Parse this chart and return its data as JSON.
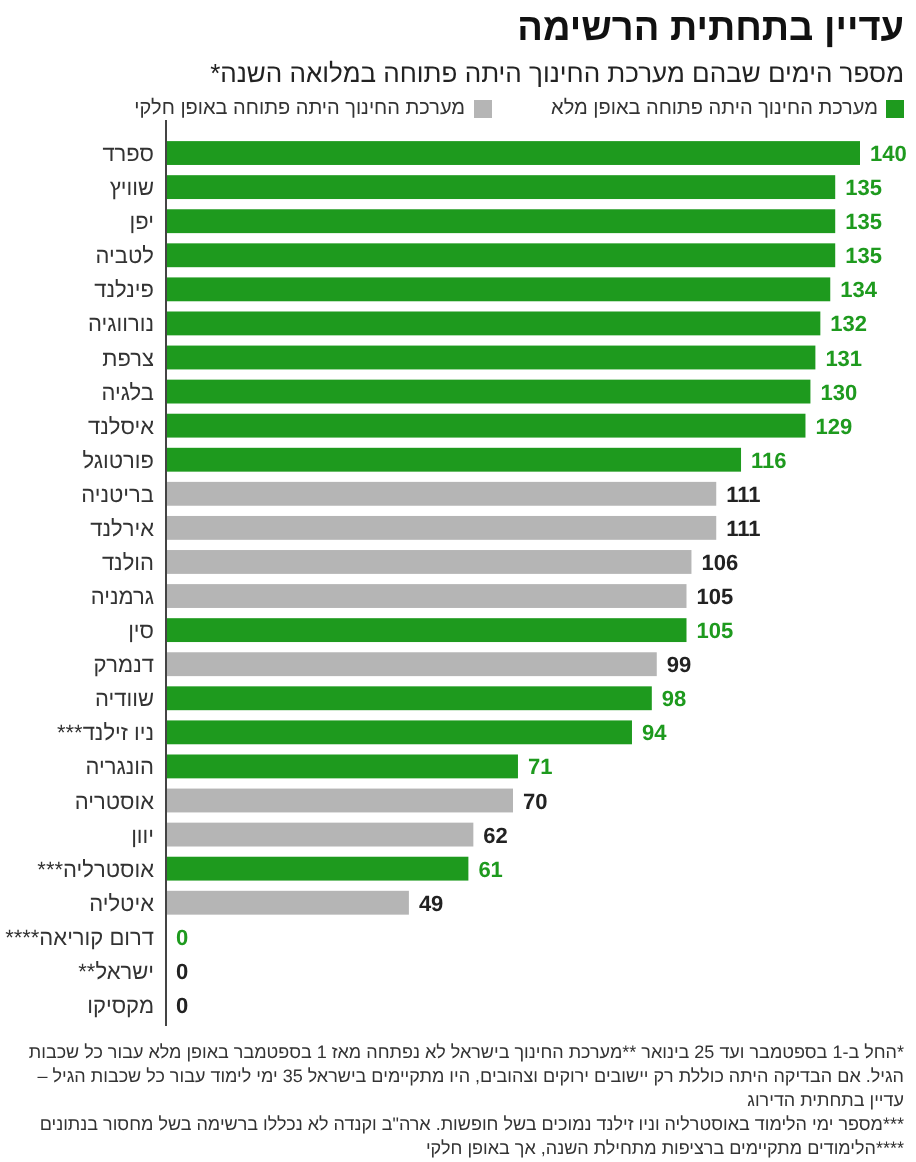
{
  "chart_data": {
    "type": "bar",
    "orientation": "horizontal",
    "data_labels": true,
    "legend": "top",
    "title": "עדיין בתחתית הרשימה",
    "subtitle": "מספר הימים שבהם מערכת החינוך היתה פתוחה במלואה השנה*",
    "categories": [
      "ספרד",
      "שוויץ",
      "יפן",
      "לטביה",
      "פינלנד",
      "נורווגיה",
      "צרפת",
      "בלגיה",
      "איסלנד",
      "פורטוגל",
      "בריטניה",
      "אירלנד",
      "הולנד",
      "גרמניה",
      "סין",
      "דנמרק",
      "שוודיה",
      "ניו זילנד***",
      "הונגריה",
      "אוסטריה",
      "יוון",
      "אוסטרליה***",
      "איטליה",
      "דרום קוריאה****",
      "ישראל**",
      "מקסיקו"
    ],
    "series": [
      {
        "name": "מערכת החינוך היתה פתוחה באופן מלא",
        "color": "#1e9a1e",
        "values": [
          140,
          135,
          135,
          135,
          134,
          132,
          131,
          130,
          129,
          116,
          null,
          null,
          null,
          null,
          105,
          null,
          98,
          94,
          71,
          null,
          null,
          61,
          null,
          0,
          null,
          null
        ]
      },
      {
        "name": "מערכת החינוך היתה פתוחה באופן חלקי",
        "color": "#b5b5b5",
        "values": [
          null,
          null,
          null,
          null,
          null,
          null,
          null,
          null,
          null,
          null,
          111,
          111,
          106,
          105,
          null,
          99,
          null,
          null,
          null,
          70,
          62,
          null,
          49,
          null,
          0,
          0
        ]
      }
    ],
    "annotations": [
      "*החל ב-1 בספטמבר ועד 25 בינואר **מערכת החינוך בישראל לא נפתחה מאז 1 בספטמבר באופן מלא עבור כל שכבות הגיל. אם הבדיקה היתה כוללת רק יישובים ירוקים וצהובים, היו מתקיימים בישראל 35 ימי לימוד עבור כל שכבות הגיל – עדיין בתחתית הדירוג",
      "***מספר ימי הלימוד באוסטרליה וניו זילנד נמוכים בשל חופשות. ארה\"ב וקנדה לא נכללו ברשימה בשל מחסור בנתונים",
      "****הלימודים מתקיימים ברציפות מתחילת השנה, אך באופן חלקי"
    ]
  }
}
